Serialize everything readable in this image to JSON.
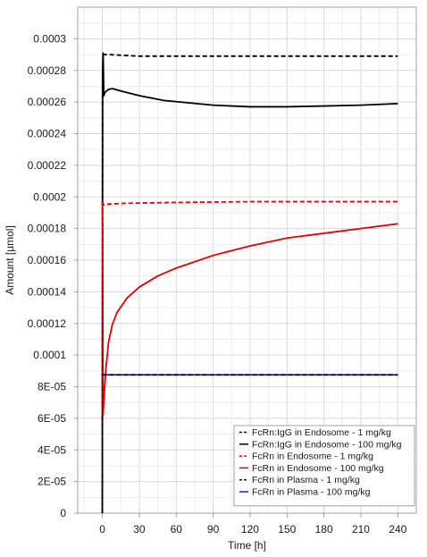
{
  "chart_data": {
    "type": "line",
    "xlabel": "Time [h]",
    "ylabel": "Amount [µmol]",
    "xlim": [
      -20,
      255
    ],
    "ylim": [
      0,
      0.00032
    ],
    "x_ticks": [
      0,
      30,
      60,
      90,
      120,
      150,
      180,
      210,
      240
    ],
    "x_tick_labels": [
      "0",
      "30",
      "60",
      "90",
      "120",
      "150",
      "180",
      "210",
      "240"
    ],
    "y_ticks": [
      0,
      2e-05,
      4e-05,
      6e-05,
      8e-05,
      0.0001,
      0.00012,
      0.00014,
      0.00016,
      0.00018,
      0.0002,
      0.00022,
      0.00024,
      0.00026,
      0.00028,
      0.0003
    ],
    "y_tick_labels": [
      "0",
      "2E-05",
      "4E-05",
      "6E-05",
      "8E-05",
      "0.0001",
      "0.00012",
      "0.00014",
      "0.00016",
      "0.00018",
      "0.0002",
      "0.00022",
      "0.00024",
      "0.00026",
      "0.00028",
      "0.0003"
    ],
    "grid": true,
    "legend_position": "bottom-right",
    "series": [
      {
        "name": "FcRn:IgG in Endosome - 1 mg/kg",
        "color": "#000000",
        "dash": true,
        "points": [
          [
            0,
            0.0
          ],
          [
            0.2,
            0.000275
          ],
          [
            0.8,
            0.00029
          ],
          [
            5,
            0.00029
          ],
          [
            30,
            0.000289
          ],
          [
            60,
            0.000289
          ],
          [
            120,
            0.000289
          ],
          [
            180,
            0.000289
          ],
          [
            240,
            0.000289
          ]
        ]
      },
      {
        "name": "FcRn:IgG in Endosome - 100 mg/kg",
        "color": "#000000",
        "dash": false,
        "points": [
          [
            0,
            0.0
          ],
          [
            0.2,
            0.00028
          ],
          [
            0.6,
            0.000291
          ],
          [
            1.2,
            0.000264
          ],
          [
            2,
            0.000266
          ],
          [
            5,
            0.000268
          ],
          [
            8,
            0.0002685
          ],
          [
            15,
            0.000267
          ],
          [
            30,
            0.000264
          ],
          [
            50,
            0.000261
          ],
          [
            70,
            0.0002595
          ],
          [
            90,
            0.000258
          ],
          [
            120,
            0.000257
          ],
          [
            150,
            0.000257
          ],
          [
            180,
            0.0002575
          ],
          [
            210,
            0.000258
          ],
          [
            240,
            0.000259
          ]
        ]
      },
      {
        "name": "FcRn in Endosome - 1 mg/kg",
        "color": "#e60000",
        "dash": true,
        "points": [
          [
            0,
            0.000197
          ],
          [
            0.8,
            0.000195
          ],
          [
            5,
            0.0001955
          ],
          [
            20,
            0.000196
          ],
          [
            60,
            0.0001965
          ],
          [
            120,
            0.000197
          ],
          [
            180,
            0.000197
          ],
          [
            240,
            0.000197
          ]
        ]
      },
      {
        "name": "FcRn in Endosome - 100 mg/kg",
        "color": "#e60000",
        "dash": false,
        "points": [
          [
            0,
            0.000197
          ],
          [
            0.25,
            0.00018
          ],
          [
            0.6,
            6.2e-05
          ],
          [
            1.5,
            7.5e-05
          ],
          [
            3,
            9.2e-05
          ],
          [
            5,
            0.000108
          ],
          [
            8,
            0.000119
          ],
          [
            12,
            0.000127
          ],
          [
            20,
            0.000136
          ],
          [
            30,
            0.000143
          ],
          [
            45,
            0.00015
          ],
          [
            60,
            0.000155
          ],
          [
            90,
            0.000163
          ],
          [
            120,
            0.000169
          ],
          [
            150,
            0.000174
          ],
          [
            180,
            0.000177
          ],
          [
            210,
            0.00018
          ],
          [
            240,
            0.000183
          ]
        ]
      },
      {
        "name": "FcRn in Plasma - 1 mg/kg",
        "color": "#000000",
        "dash": true,
        "points": [
          [
            0,
            8.75e-05
          ],
          [
            240,
            8.75e-05
          ]
        ]
      },
      {
        "name": "FcRn in Plasma - 100 mg/kg",
        "color": "#1a1aff",
        "dash": false,
        "points": [
          [
            0,
            8.75e-05
          ],
          [
            240,
            8.75e-05
          ]
        ]
      }
    ]
  }
}
